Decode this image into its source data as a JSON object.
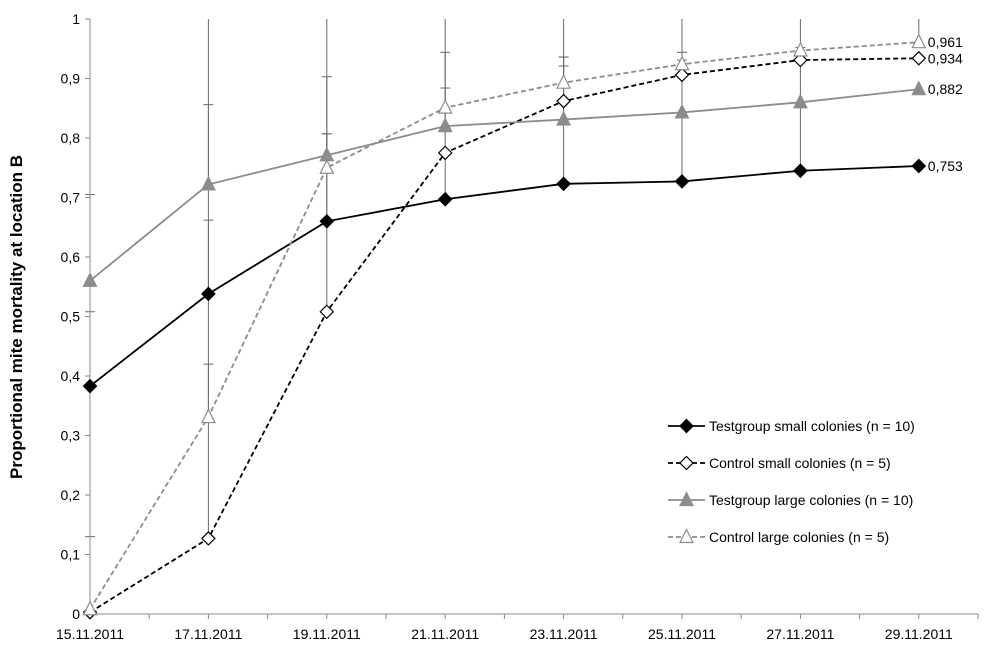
{
  "chart_data": {
    "type": "line",
    "title": "",
    "xlabel": "",
    "ylabel": "Proportional mite mortality at location B",
    "ylim": [
      0,
      1
    ],
    "yticks": [
      "0",
      "0,1",
      "0,2",
      "0,3",
      "0,4",
      "0,5",
      "0,6",
      "0,7",
      "0,8",
      "0,9",
      "1"
    ],
    "xlim": [
      "2011-11-15",
      "2011-11-30"
    ],
    "xticks": [
      "15.11.2011",
      "17.11.2011",
      "19.11.2011",
      "21.11.2011",
      "23.11.2011",
      "25.11.2011",
      "27.11.2011",
      "29.11.2011"
    ],
    "x": [
      "2011-11-15",
      "2011-11-17",
      "2011-11-19",
      "2011-11-21",
      "2011-11-23",
      "2011-11-25",
      "2011-11-27",
      "2011-11-29"
    ],
    "grid": false,
    "legend_position": "right",
    "series": [
      {
        "name": "Testgroup small colonies (n = 10)",
        "color": "#000000",
        "dash": "solid",
        "marker": "diamond",
        "filled": true,
        "values": [
          0.383,
          0.538,
          0.66,
          0.697,
          0.723,
          0.727,
          0.745,
          0.753
        ],
        "error_upper": [
          0.508,
          0.662,
          0.807,
          0.884,
          0.921,
          0.931,
          0.952,
          null
        ],
        "end_label": "0,753"
      },
      {
        "name": "Control small colonies (n = 5)",
        "color": "#000000",
        "dash": "dashed",
        "marker": "diamond",
        "filled": false,
        "values": [
          0.003,
          0.127,
          0.508,
          0.775,
          0.862,
          0.906,
          0.931,
          0.934
        ],
        "error_upper": [
          null,
          0.42,
          0.807,
          null,
          0.936,
          0.944,
          null,
          null
        ],
        "end_label": "0,934"
      },
      {
        "name": "Testgroup large colonies (n = 10)",
        "color": "#8c8c8c",
        "dash": "solid",
        "marker": "triangle",
        "filled": true,
        "values": [
          0.56,
          0.722,
          0.771,
          0.82,
          0.831,
          0.843,
          0.86,
          0.882
        ],
        "error_upper": [
          0.705,
          0.856,
          0.903,
          0.944,
          0.936,
          null,
          null,
          null
        ],
        "end_label": "0,882"
      },
      {
        "name": "Control large colonies (n = 5)",
        "color": "#8c8c8c",
        "dash": "dashed",
        "marker": "triangle",
        "filled": false,
        "values": [
          0.008,
          0.331,
          0.75,
          0.851,
          0.893,
          0.924,
          0.947,
          0.961
        ],
        "error_upper": [
          0.13,
          1.0,
          1.0,
          1.0,
          1.0,
          1.0,
          1.0,
          1.0
        ],
        "end_label": "0,961"
      }
    ]
  }
}
